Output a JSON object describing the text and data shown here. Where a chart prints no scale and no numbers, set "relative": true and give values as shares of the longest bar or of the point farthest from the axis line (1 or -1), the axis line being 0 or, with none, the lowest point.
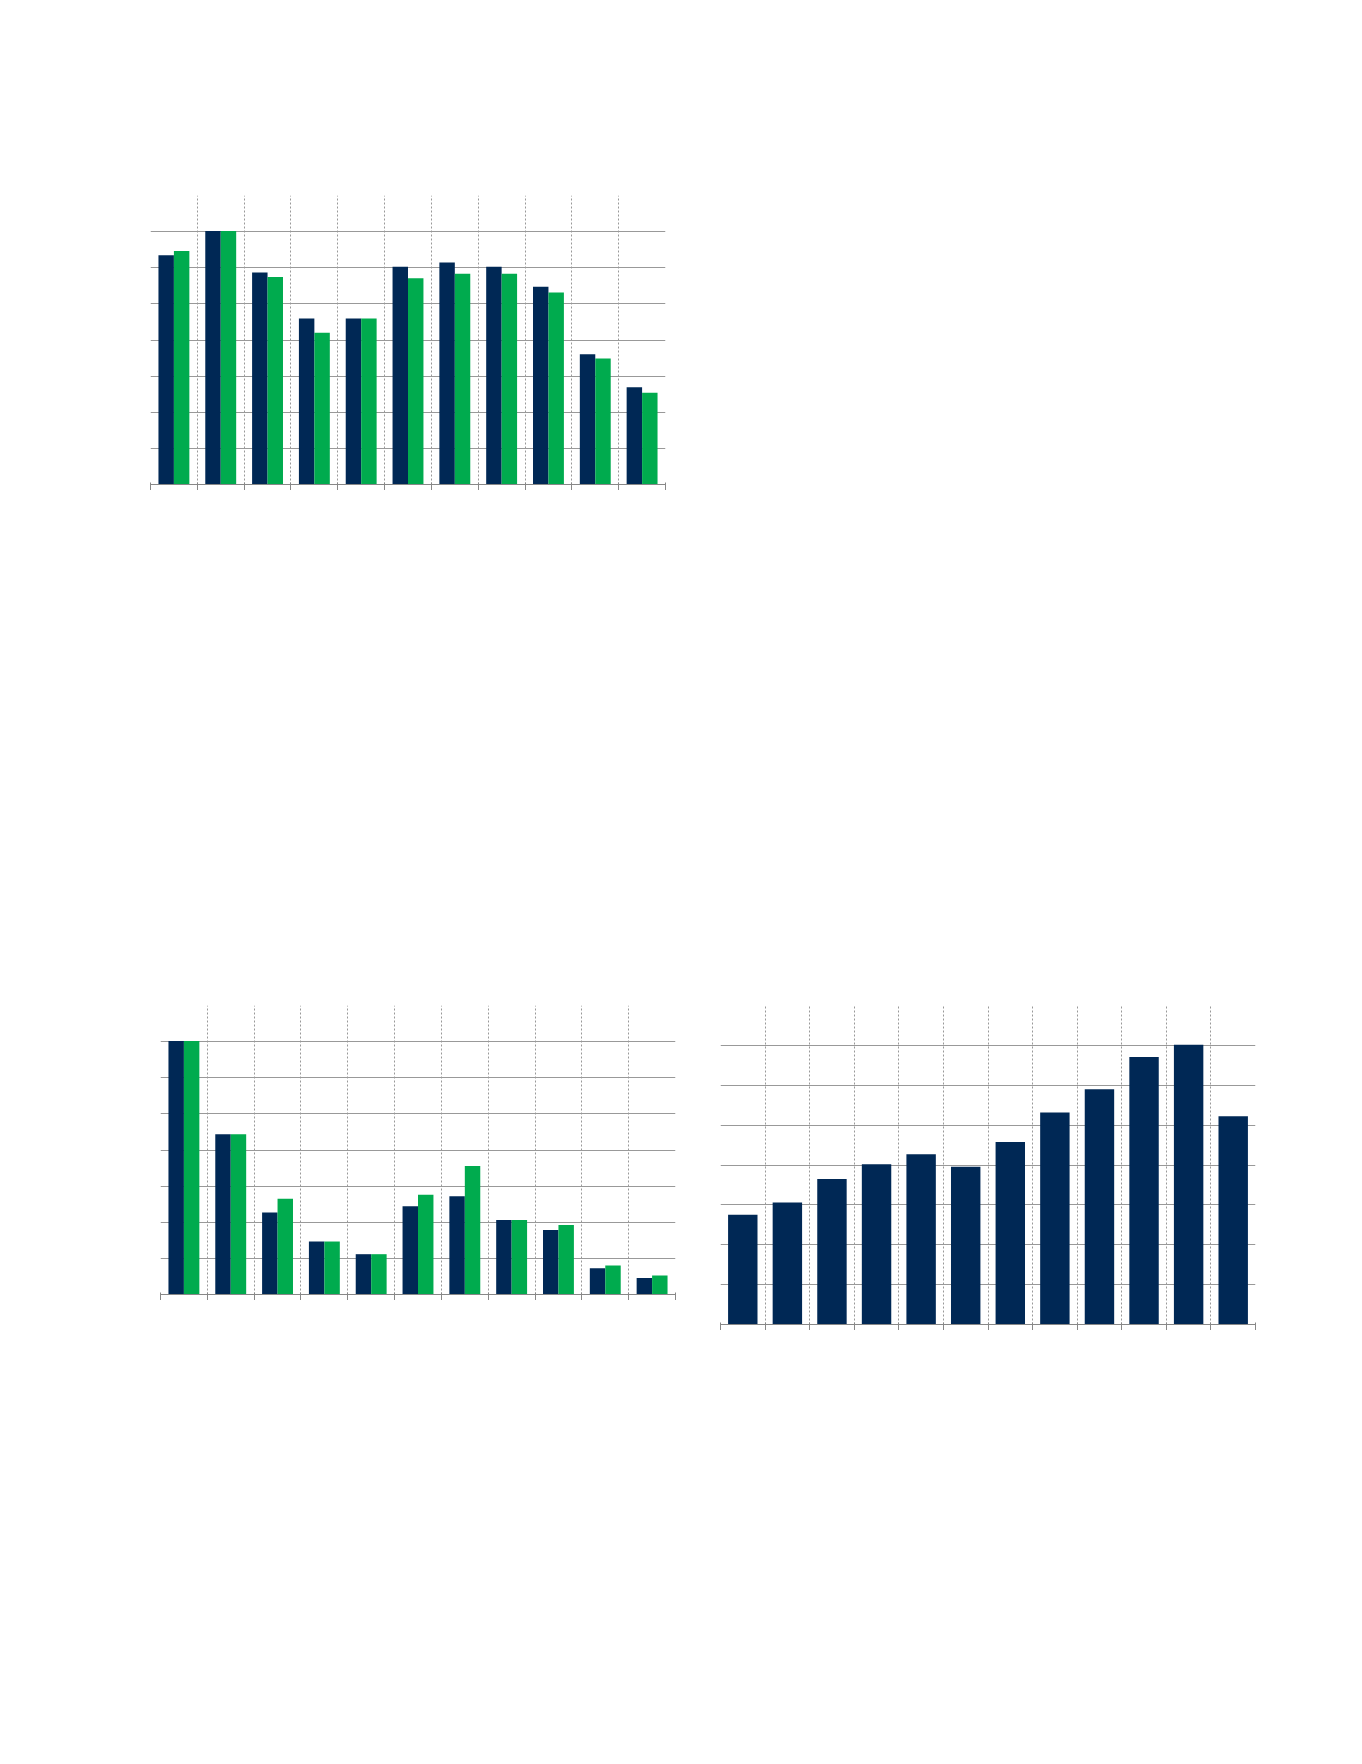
{
  "chart_data": [
    {
      "type": "bar",
      "relative": true,
      "categories": [
        null,
        null,
        null,
        null,
        null,
        null,
        null,
        null,
        null,
        null,
        null
      ],
      "grid": true,
      "tick_labels": false,
      "series": [
        {
          "color": "#002855",
          "values": [
            0.904,
            1,
            0.836,
            0.655,
            0.655,
            0.859,
            0.876,
            0.859,
            0.78,
            0.514,
            0.384
          ]
        },
        {
          "color": "#00ab4e",
          "values": [
            0.921,
            1,
            0.819,
            0.599,
            0.655,
            0.814,
            0.831,
            0.831,
            0.757,
            0.497,
            0.362
          ]
        }
      ]
    },
    {
      "type": "bar",
      "relative": true,
      "categories": [
        null,
        null,
        null,
        null,
        null,
        null,
        null,
        null,
        null,
        null,
        null
      ],
      "grid": true,
      "tick_labels": false,
      "series": [
        {
          "color": "#002855",
          "values": [
            1,
            0.632,
            0.323,
            0.209,
            0.159,
            0.348,
            0.388,
            0.294,
            0.254,
            0.104,
            0.065
          ]
        },
        {
          "color": "#00ab4e",
          "values": [
            1,
            0.632,
            0.378,
            0.209,
            0.159,
            0.393,
            0.507,
            0.294,
            0.274,
            0.114,
            0.075
          ]
        }
      ]
    },
    {
      "type": "bar",
      "relative": true,
      "categories": [
        null,
        null,
        null,
        null,
        null,
        null,
        null,
        null,
        null,
        null,
        null,
        null
      ],
      "grid": true,
      "tick_labels": false,
      "series": [
        {
          "color": "#002855",
          "values": [
            0.392,
            0.436,
            0.52,
            0.573,
            0.608,
            0.564,
            0.652,
            0.758,
            0.841,
            0.956,
            1,
            0.744
          ]
        }
      ]
    }
  ]
}
